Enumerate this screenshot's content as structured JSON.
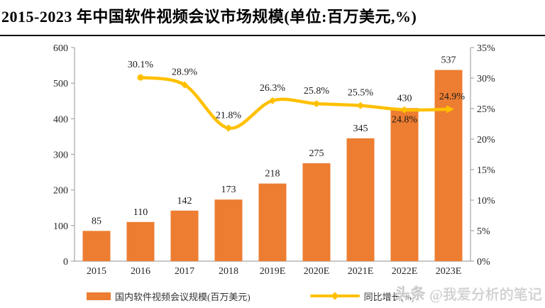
{
  "title": "2015-2023 年中国软件视频会议市场规模(单位:百万美元,%)",
  "watermark": {
    "logo": "头条",
    "handle": "@我爱分析的笔记"
  },
  "legend": [
    {
      "type": "bar",
      "label": "国内软件视频会议规模(百万美元)",
      "color": "#ED7D31"
    },
    {
      "type": "line",
      "label": "同比增长(%)",
      "color": "#FFC000"
    }
  ],
  "colors": {
    "bar": "#ED7D31",
    "line": "#FFC000",
    "axis": "#A6A6A6",
    "axis_text": "#262626",
    "label_text": "#1a1a1a"
  },
  "chart_data": {
    "type": "bar",
    "title": "2015-2023 年中国软件视频会议市场规模(单位:百万美元,%)",
    "categories": [
      "2015",
      "2016",
      "2017",
      "2018",
      "2019E",
      "2020E",
      "2021E",
      "2022E",
      "2023E"
    ],
    "series": [
      {
        "name": "国内软件视频会议规模(百万美元)",
        "type": "bar",
        "axis": "left",
        "color": "#ED7D31",
        "values": [
          85,
          110,
          142,
          173,
          218,
          275,
          345,
          430,
          537
        ],
        "labels": [
          "85",
          "110",
          "142",
          "173",
          "218",
          "275",
          "345",
          "430",
          "537"
        ]
      },
      {
        "name": "同比增长(%)",
        "type": "line",
        "axis": "right",
        "color": "#FFC000",
        "values": [
          null,
          30.1,
          28.9,
          21.8,
          26.3,
          25.8,
          25.5,
          24.8,
          24.9
        ],
        "labels": [
          null,
          "30.1%",
          "28.9%",
          "21.8%",
          "26.3%",
          "25.8%",
          "25.5%",
          "24.8%",
          "24.9%"
        ],
        "label_position": [
          null,
          "above",
          "above",
          "above",
          "above",
          "above",
          "above",
          "below",
          "above"
        ]
      }
    ],
    "left_axis": {
      "min": 0,
      "max": 600,
      "step": 100,
      "ticks": [
        "0",
        "100",
        "200",
        "300",
        "400",
        "500",
        "600"
      ]
    },
    "right_axis": {
      "min": 0,
      "max": 35,
      "step": 5,
      "ticks": [
        "0%",
        "5%",
        "10%",
        "15%",
        "20%",
        "25%",
        "30%",
        "35%"
      ]
    },
    "grid": false,
    "legend_position": "bottom"
  }
}
